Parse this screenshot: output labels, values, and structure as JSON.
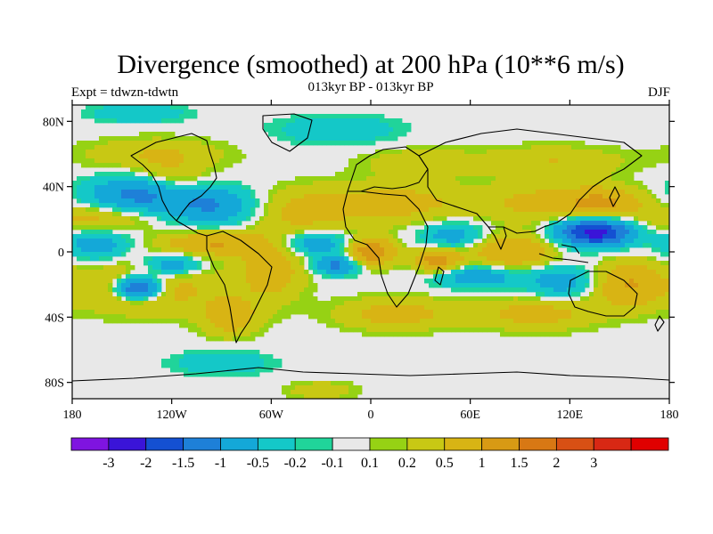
{
  "title": "Divergence (smoothed) at 200 hPa (10**6 m/s)",
  "left_label": "Expt = tdwzn-tdwtn",
  "center_label": "013kyr BP - 013kyr BP",
  "right_label": "DJF",
  "map": {
    "lon_range": [
      -180,
      180
    ],
    "lat_range": [
      -90,
      90
    ],
    "lat_ticks": [
      {
        "value": 80,
        "label": "80N"
      },
      {
        "value": 40,
        "label": "40N"
      },
      {
        "value": 0,
        "label": "0"
      },
      {
        "value": -40,
        "label": "40S"
      },
      {
        "value": -80,
        "label": "80S"
      }
    ],
    "lon_ticks": [
      {
        "value": -180,
        "label": "180"
      },
      {
        "value": -120,
        "label": "120W"
      },
      {
        "value": -60,
        "label": "60W"
      },
      {
        "value": 0,
        "label": "0"
      },
      {
        "value": 60,
        "label": "60E"
      },
      {
        "value": 120,
        "label": "120E"
      },
      {
        "value": 180,
        "label": "180"
      }
    ],
    "background_color": "#e8e8e8"
  },
  "colorbar": {
    "colors": [
      "#7f14e0",
      "#3a14d8",
      "#1450d2",
      "#1e80d8",
      "#14a8d8",
      "#14c8c8",
      "#20d49a",
      "#e8e8e8",
      "#96d214",
      "#c8c814",
      "#d8b414",
      "#d89a14",
      "#d87814",
      "#d85014",
      "#d82814",
      "#e00000"
    ],
    "labels": [
      "-3",
      "-2",
      "-1.5",
      "-1",
      "-0.5",
      "-0.2",
      "-0.1",
      "0.1",
      "0.2",
      "0.5",
      "1",
      "1.5",
      "2",
      "3"
    ]
  },
  "chart_data": {
    "type": "heatmap",
    "title": "Divergence (smoothed) at 200 hPa (10**6 m/s)",
    "x_range": [
      -180,
      180
    ],
    "y_range": [
      -90,
      90
    ],
    "levels": [
      -3,
      -2,
      -1.5,
      -1,
      -0.5,
      -0.2,
      -0.1,
      0.1,
      0.2,
      0.5,
      1,
      1.5,
      2,
      3
    ],
    "anomalies": [
      {
        "lon": -140,
        "lat": 35,
        "value": -1.2,
        "sx": 22,
        "sy": 8
      },
      {
        "lon": -95,
        "lat": 28,
        "value": -1.0,
        "sx": 18,
        "sy": 8
      },
      {
        "lon": -165,
        "lat": 5,
        "value": -0.8,
        "sx": 14,
        "sy": 7
      },
      {
        "lon": -120,
        "lat": -8,
        "value": -1.0,
        "sx": 12,
        "sy": 5
      },
      {
        "lon": -140,
        "lat": -22,
        "value": -2.2,
        "sx": 10,
        "sy": 5
      },
      {
        "lon": -135,
        "lat": -22,
        "value": 0.8,
        "sx": 30,
        "sy": 11
      },
      {
        "lon": -165,
        "lat": 20,
        "value": 0.7,
        "sx": 22,
        "sy": 6
      },
      {
        "lon": -95,
        "lat": 5,
        "value": 1.0,
        "sx": 22,
        "sy": 5
      },
      {
        "lon": -120,
        "lat": 45,
        "value": 0.5,
        "sx": 15,
        "sy": 8
      },
      {
        "lon": -60,
        "lat": -10,
        "value": 0.8,
        "sx": 14,
        "sy": 14
      },
      {
        "lon": -40,
        "lat": 25,
        "value": 0.6,
        "sx": 20,
        "sy": 10
      },
      {
        "lon": -35,
        "lat": 5,
        "value": -0.9,
        "sx": 16,
        "sy": 5
      },
      {
        "lon": -20,
        "lat": -8,
        "value": -1.2,
        "sx": 10,
        "sy": 4
      },
      {
        "lon": -85,
        "lat": -40,
        "value": 0.8,
        "sx": 12,
        "sy": 8
      },
      {
        "lon": 0,
        "lat": 0,
        "value": 1.5,
        "sx": 10,
        "sy": 6
      },
      {
        "lon": 15,
        "lat": 30,
        "value": 0.7,
        "sx": 30,
        "sy": 9
      },
      {
        "lon": 40,
        "lat": -5,
        "value": 1.3,
        "sx": 10,
        "sy": 5
      },
      {
        "lon": 50,
        "lat": 10,
        "value": -0.8,
        "sx": 14,
        "sy": 6
      },
      {
        "lon": 65,
        "lat": -15,
        "value": -0.9,
        "sx": 18,
        "sy": 5
      },
      {
        "lon": 85,
        "lat": 0,
        "value": 1.0,
        "sx": 18,
        "sy": 8
      },
      {
        "lon": 100,
        "lat": 30,
        "value": 0.6,
        "sx": 25,
        "sy": 8
      },
      {
        "lon": 135,
        "lat": 12,
        "value": -2.3,
        "sx": 16,
        "sy": 6
      },
      {
        "lon": 140,
        "lat": 30,
        "value": 1.0,
        "sx": 18,
        "sy": 7
      },
      {
        "lon": 155,
        "lat": -20,
        "value": 1.0,
        "sx": 15,
        "sy": 10
      },
      {
        "lon": 115,
        "lat": -18,
        "value": -0.8,
        "sx": 15,
        "sy": 7
      },
      {
        "lon": 15,
        "lat": -38,
        "value": 0.7,
        "sx": 25,
        "sy": 7
      },
      {
        "lon": 100,
        "lat": -38,
        "value": 0.7,
        "sx": 25,
        "sy": 7
      },
      {
        "lon": -130,
        "lat": 60,
        "value": 0.5,
        "sx": 30,
        "sy": 7
      },
      {
        "lon": -20,
        "lat": 75,
        "value": -0.5,
        "sx": 25,
        "sy": 6
      },
      {
        "lon": 30,
        "lat": 55,
        "value": 0.4,
        "sx": 25,
        "sy": 6
      },
      {
        "lon": 110,
        "lat": 55,
        "value": 0.5,
        "sx": 30,
        "sy": 7
      },
      {
        "lon": -90,
        "lat": -68,
        "value": -0.5,
        "sx": 20,
        "sy": 5
      },
      {
        "lon": -140,
        "lat": 85,
        "value": -0.5,
        "sx": 20,
        "sy": 4
      },
      {
        "lon": -30,
        "lat": -85,
        "value": 0.4,
        "sx": 15,
        "sy": 4
      }
    ]
  }
}
